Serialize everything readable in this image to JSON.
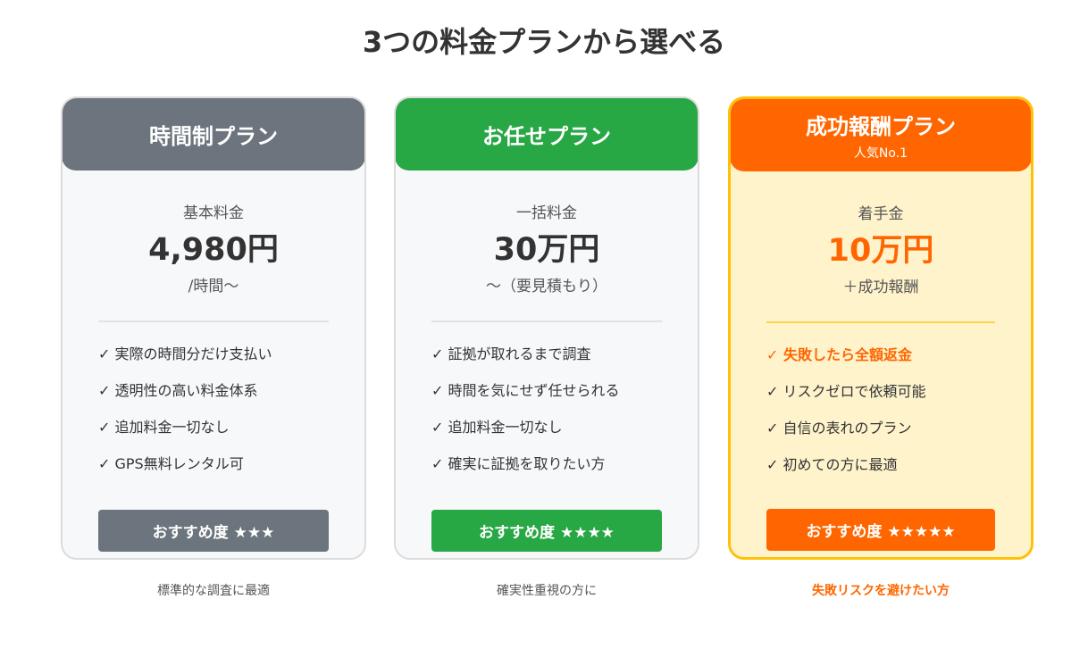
{
  "title": "3つの料金プランから選べる",
  "plans": [
    {
      "name": "時間制プラン",
      "badge": "",
      "price_label": "基本料金",
      "price": "4,980円",
      "price_sub": "/時間〜",
      "features": [
        "✓ 実際の時間分だけ支払い",
        "✓ 透明性の高い料金体系",
        "✓ 追加料金一切なし",
        "✓ GPS無料レンタル可"
      ],
      "button": "おすすめ度 ★★★",
      "caption": "標準的な調査に最適",
      "color": "#6c757d"
    },
    {
      "name": "お任せプラン",
      "badge": "",
      "price_label": "一括料金",
      "price": "30万円",
      "price_sub": "〜（要見積もり）",
      "features": [
        "✓ 証拠が取れるまで調査",
        "✓ 時間を気にせず任せられる",
        "✓ 追加料金一切なし",
        "✓ 確実に証拠を取りたい方"
      ],
      "button": "おすすめ度 ★★★★",
      "caption": "確実性重視の方に",
      "color": "#28a745"
    },
    {
      "name": "成功報酬プラン",
      "badge": "人気No.1",
      "price_label": "着手金",
      "price": "10万円",
      "price_sub": "＋成功報酬",
      "features": [
        "✓ 失敗したら全額返金",
        "✓ リスクゼロで依頼可能",
        "✓ 自信の表れのプラン",
        "✓ 初めての方に最適"
      ],
      "button": "おすすめ度 ★★★★★",
      "caption": "失敗リスクを避けたい方",
      "color": "#ff6600"
    }
  ]
}
